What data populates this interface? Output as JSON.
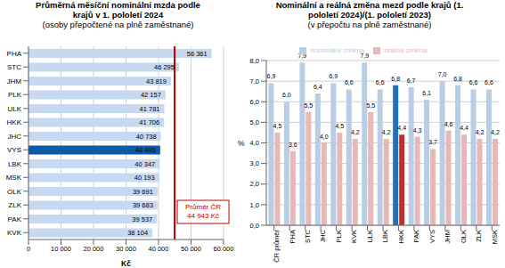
{
  "chart_data": [
    {
      "type": "bar",
      "orientation": "horizontal",
      "title": "Průměrná měsíční nominální mzda podle krajů v 1. pololetí 2024",
      "subtitle": "(osoby přepočtené na plně zaměstnané)",
      "x_label": "Kč",
      "categories": [
        "PHA",
        "STC",
        "JHM",
        "PLK",
        "ULK",
        "HKK",
        "JHC",
        "VYS",
        "LBK",
        "MSK",
        "OLK",
        "ZLK",
        "PAK",
        "KVK"
      ],
      "values": [
        56361,
        46295,
        43819,
        42157,
        41781,
        41706,
        40738,
        40495,
        40347,
        40193,
        39691,
        39683,
        39537,
        38104
      ],
      "value_labels": [
        "56 361",
        "46 295",
        "43 819",
        "42 157",
        "41 781",
        "41 706",
        "40 738",
        "40 495",
        "40 347",
        "40 193",
        "39 691",
        "39 683",
        "39 537",
        "38 104"
      ],
      "colors": [
        "#c6d9f0",
        "#c6d9f0",
        "#c6d9f0",
        "#c6d9f0",
        "#c6d9f0",
        "#c6d9f0",
        "#c6d9f0",
        "#0b5aa8",
        "#c6d9f0",
        "#c6d9f0",
        "#c6d9f0",
        "#c6d9f0",
        "#c6d9f0",
        "#c6d9f0"
      ],
      "xlim": [
        0,
        60000
      ],
      "xticks": [
        0,
        {
          "value": 10000,
          "label": "10 000"
        },
        {
          "value": 20000,
          "label": "20 000"
        },
        {
          "value": 30000,
          "label": "30 000"
        },
        {
          "value": 40000,
          "label": "40 000"
        },
        {
          "value": 50000,
          "label": "50 000"
        },
        {
          "value": 60000,
          "label": "60 000"
        }
      ],
      "grid": true,
      "data_labels": true,
      "reference_line": {
        "value": 44943,
        "label": [
          "Průměr ČR",
          "44 943 Kč"
        ],
        "color": "#c00000"
      }
    },
    {
      "type": "bar",
      "title": "Nominální a reálná změna mezd podle krajů (1. pololetí 2024)/(1. pololetí 2023)",
      "subtitle": "(v přepočtu na plně zaměstnané)",
      "y_label": "%",
      "legend": "top",
      "grid": true,
      "data_labels": true,
      "categories": [
        "ČR průměr",
        "PHA",
        "STC",
        "JHC",
        "PLK",
        "KVK",
        "ULK",
        "LBK",
        "HKK",
        "PAK",
        "VYS",
        "JHM",
        "OLK",
        "ZLK",
        "MSK"
      ],
      "series": [
        {
          "name": "nominální změna",
          "color": "#b9cde5",
          "colors": [
            "#b9cde5",
            "#b9cde5",
            "#b9cde5",
            "#b9cde5",
            "#b9cde5",
            "#b9cde5",
            "#b9cde5",
            "#b9cde5",
            "#1f70c1",
            "#b9cde5",
            "#b9cde5",
            "#b9cde5",
            "#b9cde5",
            "#b9cde5",
            "#b9cde5"
          ],
          "values": [
            6.9,
            6.0,
            7.9,
            6.4,
            6.9,
            6.6,
            7.9,
            6.6,
            6.8,
            6.7,
            6.1,
            7.0,
            6.8,
            6.6,
            6.6
          ],
          "value_labels": [
            "6,9",
            "6,0",
            "7,9",
            "6,4",
            "6,9",
            "6,6",
            "7,9",
            "6,6",
            "6,8",
            "6,7",
            "6,1",
            "7,0",
            "6,8",
            "6,6",
            "6,6"
          ]
        },
        {
          "name": "reálná změna",
          "color": "#e6b9b8",
          "colors": [
            "#e6b9b8",
            "#e6b9b8",
            "#e6b9b8",
            "#e6b9b8",
            "#e6b9b8",
            "#e6b9b8",
            "#e6b9b8",
            "#e6b9b8",
            "#c0302a",
            "#e6b9b8",
            "#e6b9b8",
            "#e6b9b8",
            "#e6b9b8",
            "#e6b9b8",
            "#e6b9b8"
          ],
          "values": [
            4.5,
            3.6,
            5.5,
            4.0,
            4.5,
            4.2,
            5.5,
            4.2,
            4.4,
            4.3,
            3.7,
            4.6,
            4.4,
            4.2,
            4.2
          ],
          "value_labels": [
            "4,5",
            "3,6",
            "5,5",
            "4,0",
            "4,5",
            "4,2",
            "5,5",
            "4,2",
            "4,4",
            "4,3",
            "3,7",
            "4,6",
            "4,4",
            "4,2",
            "4,2"
          ]
        }
      ],
      "ylim": [
        0,
        8
      ],
      "yticks": [
        {
          "value": 0,
          "label": "0,0"
        },
        {
          "value": 1,
          "label": "1,0"
        },
        {
          "value": 2,
          "label": "2,0"
        },
        {
          "value": 3,
          "label": "3,0"
        },
        {
          "value": 4,
          "label": "4,0"
        },
        {
          "value": 5,
          "label": "5,0"
        },
        {
          "value": 6,
          "label": "6,0"
        },
        {
          "value": 7,
          "label": "7,0"
        },
        {
          "value": 8,
          "label": "8,0"
        }
      ]
    }
  ]
}
